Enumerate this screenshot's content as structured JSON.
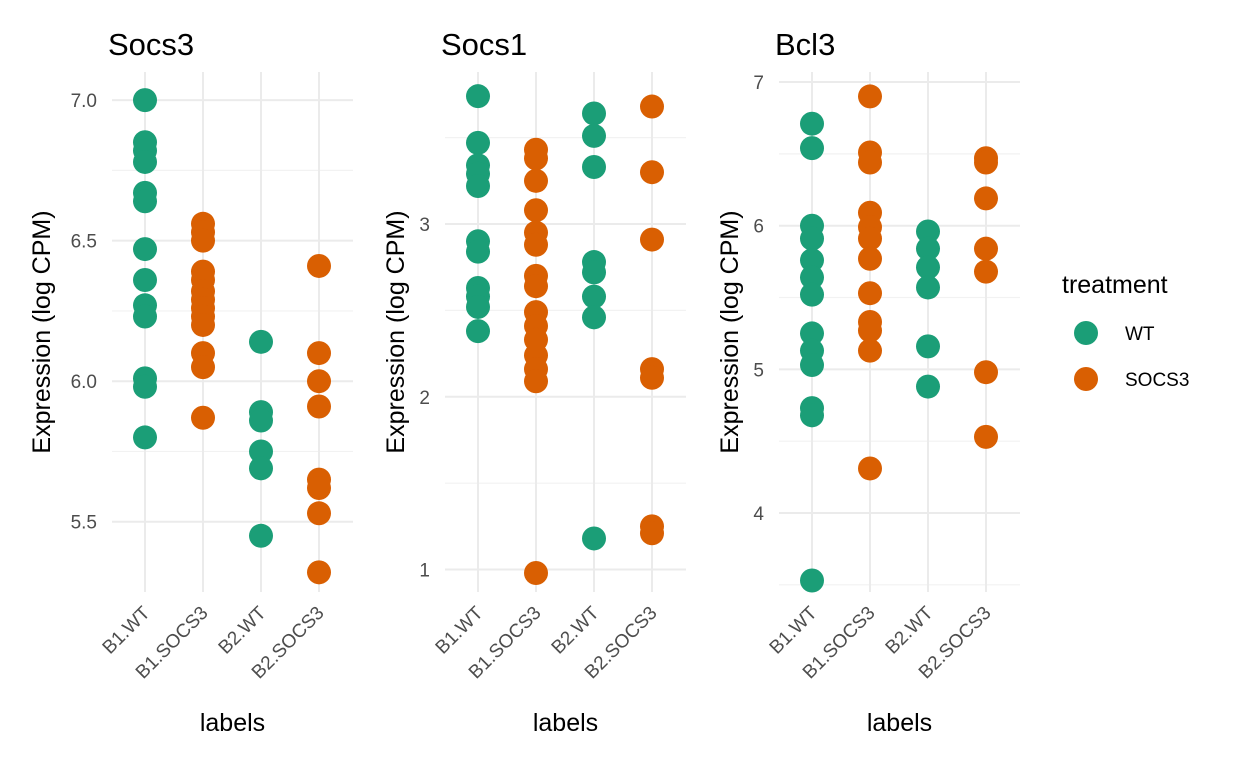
{
  "chart_data": [
    {
      "type": "scatter",
      "title": "Socs3",
      "xlabel": "labels",
      "ylabel": "Expression (log CPM)",
      "categories": [
        "B1.WT",
        "B1.SOCS3",
        "B2.WT",
        "B2.SOCS3"
      ],
      "ylim": [
        5.25,
        7.1
      ],
      "yticks": [
        5.5,
        6.0,
        6.5,
        7.0
      ],
      "ytick_labels": [
        "5.5",
        "6.0",
        "6.5",
        "7.0"
      ],
      "grid": true,
      "points": [
        {
          "x": "B1.WT",
          "y": 7.0,
          "treatment": "WT"
        },
        {
          "x": "B1.WT",
          "y": 6.85,
          "treatment": "WT"
        },
        {
          "x": "B1.WT",
          "y": 6.82,
          "treatment": "WT"
        },
        {
          "x": "B1.WT",
          "y": 6.78,
          "treatment": "WT"
        },
        {
          "x": "B1.WT",
          "y": 6.67,
          "treatment": "WT"
        },
        {
          "x": "B1.WT",
          "y": 6.64,
          "treatment": "WT"
        },
        {
          "x": "B1.WT",
          "y": 6.47,
          "treatment": "WT"
        },
        {
          "x": "B1.WT",
          "y": 6.36,
          "treatment": "WT"
        },
        {
          "x": "B1.WT",
          "y": 6.27,
          "treatment": "WT"
        },
        {
          "x": "B1.WT",
          "y": 6.23,
          "treatment": "WT"
        },
        {
          "x": "B1.WT",
          "y": 6.01,
          "treatment": "WT"
        },
        {
          "x": "B1.WT",
          "y": 5.98,
          "treatment": "WT"
        },
        {
          "x": "B1.WT",
          "y": 5.8,
          "treatment": "WT"
        },
        {
          "x": "B1.SOCS3",
          "y": 6.56,
          "treatment": "SOCS3"
        },
        {
          "x": "B1.SOCS3",
          "y": 6.53,
          "treatment": "SOCS3"
        },
        {
          "x": "B1.SOCS3",
          "y": 6.5,
          "treatment": "SOCS3"
        },
        {
          "x": "B1.SOCS3",
          "y": 6.39,
          "treatment": "SOCS3"
        },
        {
          "x": "B1.SOCS3",
          "y": 6.36,
          "treatment": "SOCS3"
        },
        {
          "x": "B1.SOCS3",
          "y": 6.32,
          "treatment": "SOCS3"
        },
        {
          "x": "B1.SOCS3",
          "y": 6.29,
          "treatment": "SOCS3"
        },
        {
          "x": "B1.SOCS3",
          "y": 6.26,
          "treatment": "SOCS3"
        },
        {
          "x": "B1.SOCS3",
          "y": 6.23,
          "treatment": "SOCS3"
        },
        {
          "x": "B1.SOCS3",
          "y": 6.2,
          "treatment": "SOCS3"
        },
        {
          "x": "B1.SOCS3",
          "y": 6.1,
          "treatment": "SOCS3"
        },
        {
          "x": "B1.SOCS3",
          "y": 6.05,
          "treatment": "SOCS3"
        },
        {
          "x": "B1.SOCS3",
          "y": 5.87,
          "treatment": "SOCS3"
        },
        {
          "x": "B2.WT",
          "y": 6.14,
          "treatment": "WT"
        },
        {
          "x": "B2.WT",
          "y": 5.89,
          "treatment": "WT"
        },
        {
          "x": "B2.WT",
          "y": 5.86,
          "treatment": "WT"
        },
        {
          "x": "B2.WT",
          "y": 5.75,
          "treatment": "WT"
        },
        {
          "x": "B2.WT",
          "y": 5.69,
          "treatment": "WT"
        },
        {
          "x": "B2.WT",
          "y": 5.45,
          "treatment": "WT"
        },
        {
          "x": "B2.SOCS3",
          "y": 6.41,
          "treatment": "SOCS3"
        },
        {
          "x": "B2.SOCS3",
          "y": 6.1,
          "treatment": "SOCS3"
        },
        {
          "x": "B2.SOCS3",
          "y": 6.0,
          "treatment": "SOCS3"
        },
        {
          "x": "B2.SOCS3",
          "y": 5.91,
          "treatment": "SOCS3"
        },
        {
          "x": "B2.SOCS3",
          "y": 5.65,
          "treatment": "SOCS3"
        },
        {
          "x": "B2.SOCS3",
          "y": 5.62,
          "treatment": "SOCS3"
        },
        {
          "x": "B2.SOCS3",
          "y": 5.53,
          "treatment": "SOCS3"
        },
        {
          "x": "B2.SOCS3",
          "y": 5.32,
          "treatment": "SOCS3"
        }
      ]
    },
    {
      "type": "scatter",
      "title": "Socs1",
      "xlabel": "labels",
      "ylabel": "Expression (log CPM)",
      "categories": [
        "B1.WT",
        "B1.SOCS3",
        "B2.WT",
        "B2.SOCS3"
      ],
      "ylim": [
        0.87,
        3.88
      ],
      "yticks": [
        1,
        2,
        3
      ],
      "ytick_labels": [
        "1",
        "2",
        "3"
      ],
      "grid": true,
      "points": [
        {
          "x": "B1.WT",
          "y": 3.74,
          "treatment": "WT"
        },
        {
          "x": "B1.WT",
          "y": 3.47,
          "treatment": "WT"
        },
        {
          "x": "B1.WT",
          "y": 3.34,
          "treatment": "WT"
        },
        {
          "x": "B1.WT",
          "y": 3.29,
          "treatment": "WT"
        },
        {
          "x": "B1.WT",
          "y": 3.22,
          "treatment": "WT"
        },
        {
          "x": "B1.WT",
          "y": 2.9,
          "treatment": "WT"
        },
        {
          "x": "B1.WT",
          "y": 2.84,
          "treatment": "WT"
        },
        {
          "x": "B1.WT",
          "y": 2.63,
          "treatment": "WT"
        },
        {
          "x": "B1.WT",
          "y": 2.58,
          "treatment": "WT"
        },
        {
          "x": "B1.WT",
          "y": 2.52,
          "treatment": "WT"
        },
        {
          "x": "B1.WT",
          "y": 2.38,
          "treatment": "WT"
        },
        {
          "x": "B1.SOCS3",
          "y": 3.43,
          "treatment": "SOCS3"
        },
        {
          "x": "B1.SOCS3",
          "y": 3.38,
          "treatment": "SOCS3"
        },
        {
          "x": "B1.SOCS3",
          "y": 3.25,
          "treatment": "SOCS3"
        },
        {
          "x": "B1.SOCS3",
          "y": 3.08,
          "treatment": "SOCS3"
        },
        {
          "x": "B1.SOCS3",
          "y": 2.95,
          "treatment": "SOCS3"
        },
        {
          "x": "B1.SOCS3",
          "y": 2.88,
          "treatment": "SOCS3"
        },
        {
          "x": "B1.SOCS3",
          "y": 2.7,
          "treatment": "SOCS3"
        },
        {
          "x": "B1.SOCS3",
          "y": 2.64,
          "treatment": "SOCS3"
        },
        {
          "x": "B1.SOCS3",
          "y": 2.49,
          "treatment": "SOCS3"
        },
        {
          "x": "B1.SOCS3",
          "y": 2.41,
          "treatment": "SOCS3"
        },
        {
          "x": "B1.SOCS3",
          "y": 2.33,
          "treatment": "SOCS3"
        },
        {
          "x": "B1.SOCS3",
          "y": 2.24,
          "treatment": "SOCS3"
        },
        {
          "x": "B1.SOCS3",
          "y": 2.16,
          "treatment": "SOCS3"
        },
        {
          "x": "B1.SOCS3",
          "y": 2.09,
          "treatment": "SOCS3"
        },
        {
          "x": "B1.SOCS3",
          "y": 0.98,
          "treatment": "SOCS3"
        },
        {
          "x": "B2.WT",
          "y": 3.64,
          "treatment": "WT"
        },
        {
          "x": "B2.WT",
          "y": 3.51,
          "treatment": "WT"
        },
        {
          "x": "B2.WT",
          "y": 3.33,
          "treatment": "WT"
        },
        {
          "x": "B2.WT",
          "y": 2.78,
          "treatment": "WT"
        },
        {
          "x": "B2.WT",
          "y": 2.72,
          "treatment": "WT"
        },
        {
          "x": "B2.WT",
          "y": 2.58,
          "treatment": "WT"
        },
        {
          "x": "B2.WT",
          "y": 2.46,
          "treatment": "WT"
        },
        {
          "x": "B2.WT",
          "y": 1.18,
          "treatment": "WT"
        },
        {
          "x": "B2.SOCS3",
          "y": 3.68,
          "treatment": "SOCS3"
        },
        {
          "x": "B2.SOCS3",
          "y": 3.3,
          "treatment": "SOCS3"
        },
        {
          "x": "B2.SOCS3",
          "y": 2.91,
          "treatment": "SOCS3"
        },
        {
          "x": "B2.SOCS3",
          "y": 2.16,
          "treatment": "SOCS3"
        },
        {
          "x": "B2.SOCS3",
          "y": 2.11,
          "treatment": "SOCS3"
        },
        {
          "x": "B2.SOCS3",
          "y": 1.25,
          "treatment": "SOCS3"
        },
        {
          "x": "B2.SOCS3",
          "y": 1.21,
          "treatment": "SOCS3"
        }
      ]
    },
    {
      "type": "scatter",
      "title": "Bcl3",
      "xlabel": "labels",
      "ylabel": "Expression (log CPM)",
      "categories": [
        "B1.WT",
        "B1.SOCS3",
        "B2.WT",
        "B2.SOCS3"
      ],
      "ylim": [
        3.45,
        7.07
      ],
      "yticks": [
        4,
        5,
        6,
        7
      ],
      "ytick_labels": [
        "4",
        "5",
        "6",
        "7"
      ],
      "grid": true,
      "points": [
        {
          "x": "B1.WT",
          "y": 6.71,
          "treatment": "WT"
        },
        {
          "x": "B1.WT",
          "y": 6.54,
          "treatment": "WT"
        },
        {
          "x": "B1.WT",
          "y": 6.0,
          "treatment": "WT"
        },
        {
          "x": "B1.WT",
          "y": 5.91,
          "treatment": "WT"
        },
        {
          "x": "B1.WT",
          "y": 5.76,
          "treatment": "WT"
        },
        {
          "x": "B1.WT",
          "y": 5.64,
          "treatment": "WT"
        },
        {
          "x": "B1.WT",
          "y": 5.52,
          "treatment": "WT"
        },
        {
          "x": "B1.WT",
          "y": 5.25,
          "treatment": "WT"
        },
        {
          "x": "B1.WT",
          "y": 5.13,
          "treatment": "WT"
        },
        {
          "x": "B1.WT",
          "y": 5.03,
          "treatment": "WT"
        },
        {
          "x": "B1.WT",
          "y": 4.73,
          "treatment": "WT"
        },
        {
          "x": "B1.WT",
          "y": 4.68,
          "treatment": "WT"
        },
        {
          "x": "B1.WT",
          "y": 3.53,
          "treatment": "WT"
        },
        {
          "x": "B1.SOCS3",
          "y": 6.9,
          "treatment": "SOCS3"
        },
        {
          "x": "B1.SOCS3",
          "y": 6.51,
          "treatment": "SOCS3"
        },
        {
          "x": "B1.SOCS3",
          "y": 6.44,
          "treatment": "SOCS3"
        },
        {
          "x": "B1.SOCS3",
          "y": 6.09,
          "treatment": "SOCS3"
        },
        {
          "x": "B1.SOCS3",
          "y": 5.99,
          "treatment": "SOCS3"
        },
        {
          "x": "B1.SOCS3",
          "y": 5.91,
          "treatment": "SOCS3"
        },
        {
          "x": "B1.SOCS3",
          "y": 5.77,
          "treatment": "SOCS3"
        },
        {
          "x": "B1.SOCS3",
          "y": 5.53,
          "treatment": "SOCS3"
        },
        {
          "x": "B1.SOCS3",
          "y": 5.33,
          "treatment": "SOCS3"
        },
        {
          "x": "B1.SOCS3",
          "y": 5.27,
          "treatment": "SOCS3"
        },
        {
          "x": "B1.SOCS3",
          "y": 5.13,
          "treatment": "SOCS3"
        },
        {
          "x": "B1.SOCS3",
          "y": 4.31,
          "treatment": "SOCS3"
        },
        {
          "x": "B2.WT",
          "y": 5.96,
          "treatment": "WT"
        },
        {
          "x": "B2.WT",
          "y": 5.84,
          "treatment": "WT"
        },
        {
          "x": "B2.WT",
          "y": 5.71,
          "treatment": "WT"
        },
        {
          "x": "B2.WT",
          "y": 5.57,
          "treatment": "WT"
        },
        {
          "x": "B2.WT",
          "y": 5.16,
          "treatment": "WT"
        },
        {
          "x": "B2.WT",
          "y": 4.88,
          "treatment": "WT"
        },
        {
          "x": "B2.SOCS3",
          "y": 6.47,
          "treatment": "SOCS3"
        },
        {
          "x": "B2.SOCS3",
          "y": 6.44,
          "treatment": "SOCS3"
        },
        {
          "x": "B2.SOCS3",
          "y": 6.19,
          "treatment": "SOCS3"
        },
        {
          "x": "B2.SOCS3",
          "y": 5.84,
          "treatment": "SOCS3"
        },
        {
          "x": "B2.SOCS3",
          "y": 5.68,
          "treatment": "SOCS3"
        },
        {
          "x": "B2.SOCS3",
          "y": 4.98,
          "treatment": "SOCS3"
        },
        {
          "x": "B2.SOCS3",
          "y": 4.53,
          "treatment": "SOCS3"
        }
      ]
    }
  ],
  "legend": {
    "title": "treatment",
    "placement": "right",
    "items": [
      {
        "label": "WT",
        "color": "#1b9e77"
      },
      {
        "label": "SOCS3",
        "color": "#d95f02"
      }
    ]
  },
  "colors": {
    "WT": "#1b9e77",
    "SOCS3": "#d95f02",
    "grid": "#ebebeb"
  }
}
